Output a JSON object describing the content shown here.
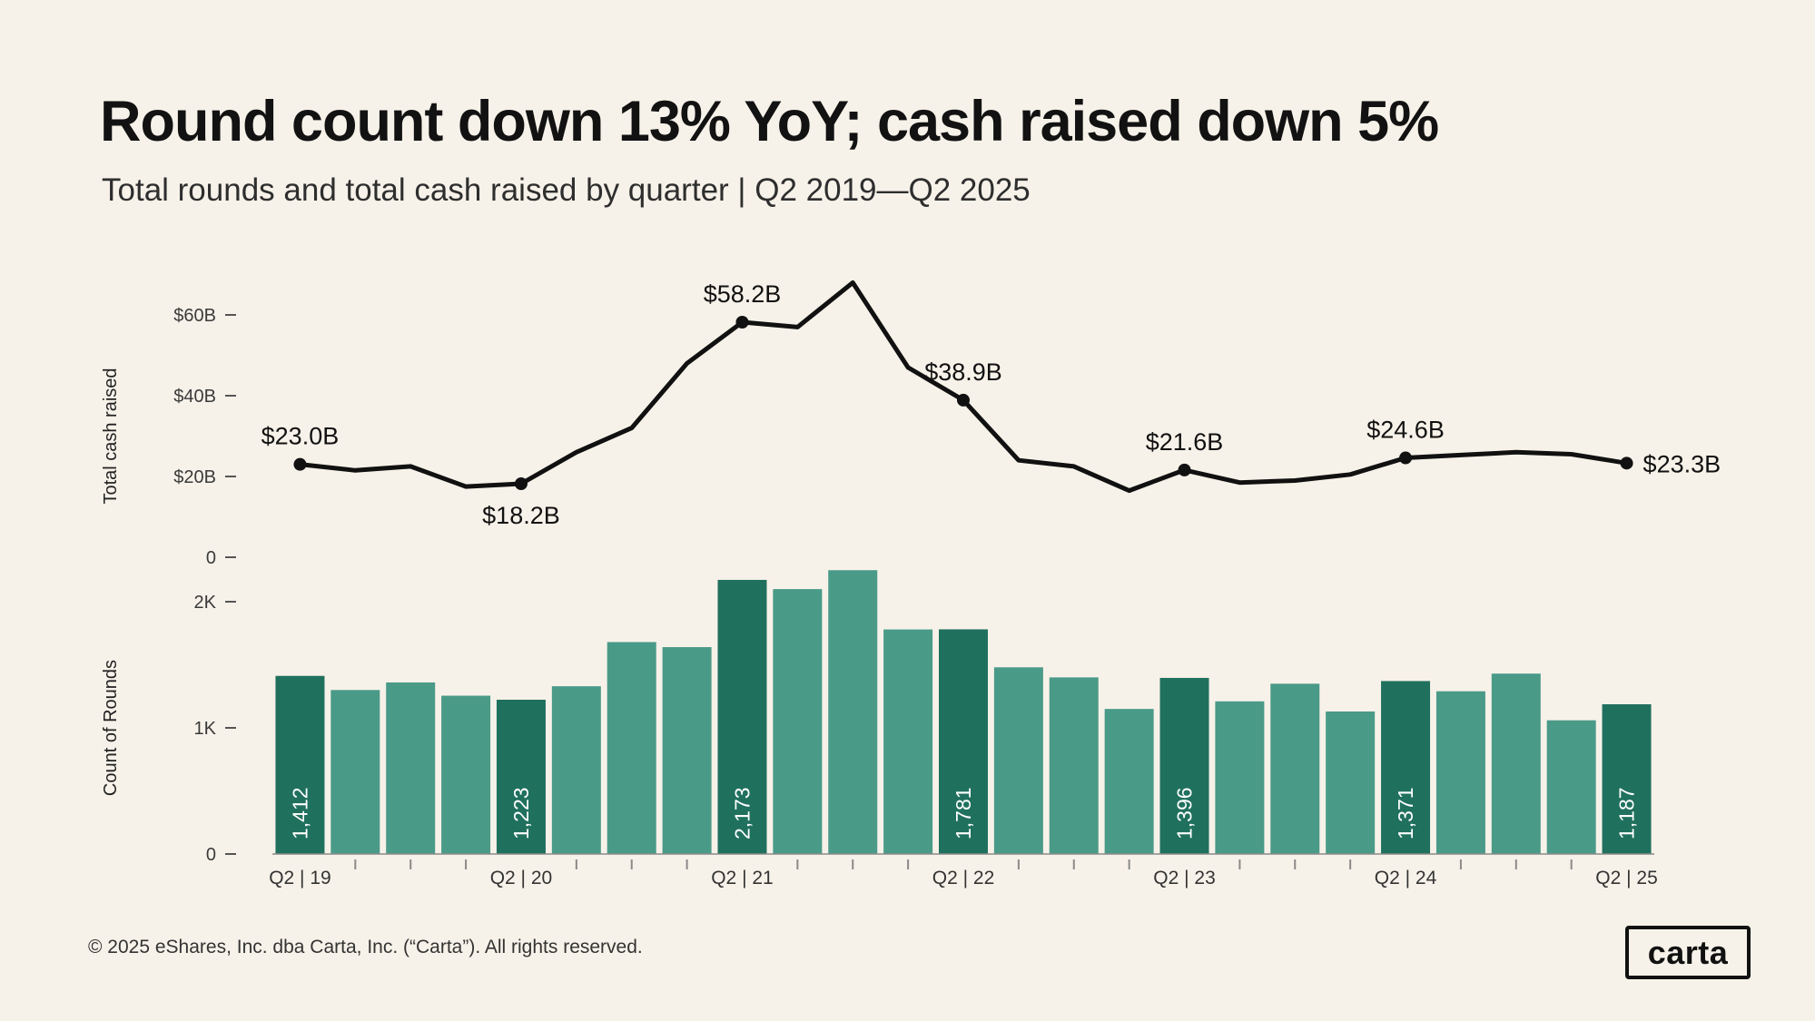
{
  "page": {
    "title": "Round count down 13% YoY; cash raised down 5%",
    "subtitle": "Total rounds and total cash raised by quarter | Q2 2019—Q2 2025",
    "footer": "© 2025 eShares, Inc. dba Carta, Inc. (“Carta”). All rights reserved.",
    "logo_text": "carta",
    "colors": {
      "background": "#F7F2E9",
      "bar": "#4A9A88",
      "bar_highlight": "#20705E",
      "line": "#111111",
      "axis": "#8a8a8a",
      "tick_text": "#3a3a3a",
      "bar_label_text": "#ffffff"
    }
  },
  "chart_data": [
    {
      "type": "line",
      "title": "Total cash raised by quarter",
      "ylabel": "Total cash raised",
      "unit": "$B",
      "ylim": [
        0,
        70
      ],
      "x": [
        "Q2 19",
        "Q3 19",
        "Q4 19",
        "Q1 20",
        "Q2 20",
        "Q3 20",
        "Q4 20",
        "Q1 21",
        "Q2 21",
        "Q3 21",
        "Q4 21",
        "Q1 22",
        "Q2 22",
        "Q3 22",
        "Q4 22",
        "Q1 23",
        "Q2 23",
        "Q3 23",
        "Q4 23",
        "Q1 24",
        "Q2 24",
        "Q3 24",
        "Q4 24",
        "Q1 25",
        "Q2 25"
      ],
      "values": [
        23.0,
        21.5,
        22.5,
        17.5,
        18.2,
        26.0,
        32.0,
        48.0,
        58.2,
        57.0,
        68.0,
        47.0,
        38.9,
        24.0,
        22.5,
        16.5,
        21.6,
        18.5,
        19.0,
        20.5,
        24.6,
        25.3,
        26.0,
        25.5,
        23.3
      ],
      "yticks": [
        {
          "value": 0,
          "label": "0"
        },
        {
          "value": 20,
          "label": "$20B"
        },
        {
          "value": 40,
          "label": "$40B"
        },
        {
          "value": 60,
          "label": "$60B"
        }
      ],
      "annotations": [
        {
          "index": 0,
          "label": "$23.0B",
          "position": "above"
        },
        {
          "index": 4,
          "label": "$18.2B",
          "position": "below"
        },
        {
          "index": 8,
          "label": "$58.2B",
          "position": "above"
        },
        {
          "index": 12,
          "label": "$38.9B",
          "position": "above"
        },
        {
          "index": 16,
          "label": "$21.6B",
          "position": "above"
        },
        {
          "index": 20,
          "label": "$24.6B",
          "position": "above"
        },
        {
          "index": 24,
          "label": "$23.3B",
          "position": "right"
        }
      ]
    },
    {
      "type": "bar",
      "title": "Count of rounds by quarter",
      "ylabel": "Count of Rounds",
      "ylim": [
        0,
        2400
      ],
      "categories": [
        "Q2 19",
        "Q3 19",
        "Q4 19",
        "Q1 20",
        "Q2 20",
        "Q3 20",
        "Q4 20",
        "Q1 21",
        "Q2 21",
        "Q3 21",
        "Q4 21",
        "Q1 22",
        "Q2 22",
        "Q3 22",
        "Q4 22",
        "Q1 23",
        "Q2 23",
        "Q3 23",
        "Q4 23",
        "Q1 24",
        "Q2 24",
        "Q3 24",
        "Q4 24",
        "Q1 25",
        "Q2 25"
      ],
      "values": [
        1412,
        1300,
        1360,
        1255,
        1223,
        1330,
        1680,
        1640,
        2173,
        2100,
        2250,
        1780,
        1781,
        1480,
        1400,
        1150,
        1396,
        1210,
        1350,
        1130,
        1371,
        1290,
        1430,
        1060,
        1187
      ],
      "highlight_indices": [
        0,
        4,
        8,
        12,
        16,
        20,
        24
      ],
      "bar_labels": [
        {
          "index": 0,
          "label": "1,412"
        },
        {
          "index": 4,
          "label": "1,223"
        },
        {
          "index": 8,
          "label": "2,173"
        },
        {
          "index": 12,
          "label": "1,781"
        },
        {
          "index": 16,
          "label": "1,396"
        },
        {
          "index": 20,
          "label": "1,371"
        },
        {
          "index": 24,
          "label": "1,187"
        }
      ],
      "yticks": [
        {
          "value": 0,
          "label": "0"
        },
        {
          "value": 1000,
          "label": "1K"
        },
        {
          "value": 2000,
          "label": "2K"
        }
      ],
      "xtick_labels": [
        {
          "index": 0,
          "label": "Q2 | 19"
        },
        {
          "index": 4,
          "label": "Q2 | 20"
        },
        {
          "index": 8,
          "label": "Q2 | 21"
        },
        {
          "index": 12,
          "label": "Q2 | 22"
        },
        {
          "index": 16,
          "label": "Q2 | 23"
        },
        {
          "index": 20,
          "label": "Q2 | 24"
        },
        {
          "index": 24,
          "label": "Q2 | 25"
        }
      ]
    }
  ]
}
